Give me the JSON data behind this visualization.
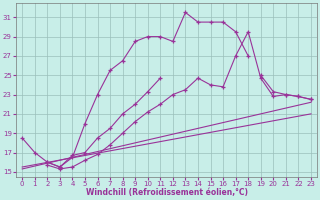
{
  "background_color": "#c8eee8",
  "grid_color": "#9bbfbb",
  "line_color": "#993399",
  "xlabel": "Windchill (Refroidissement éolien,°C)",
  "xlim": [
    -0.5,
    23.5
  ],
  "ylim": [
    14.5,
    32.5
  ],
  "yticks": [
    15,
    17,
    19,
    21,
    23,
    25,
    27,
    29,
    31
  ],
  "xticks": [
    0,
    1,
    2,
    3,
    4,
    5,
    6,
    7,
    8,
    9,
    10,
    11,
    12,
    13,
    14,
    15,
    16,
    17,
    18,
    19,
    20,
    21,
    22,
    23
  ],
  "curve1_x": [
    0,
    1,
    2,
    3,
    4,
    5,
    6,
    7,
    8,
    9,
    10,
    11,
    12,
    13,
    14,
    15,
    16,
    17,
    18
  ],
  "curve1_y": [
    18.5,
    17.0,
    16.0,
    15.5,
    16.5,
    20.0,
    23.0,
    25.5,
    26.5,
    28.5,
    29.0,
    29.0,
    28.5,
    31.5,
    30.5,
    30.5,
    30.5,
    29.5,
    27.0
  ],
  "curve2_x": [
    2,
    3,
    4,
    5,
    6,
    7,
    8,
    9,
    10,
    11,
    19,
    20,
    21,
    22,
    23
  ],
  "curve2_y": [
    16.0,
    15.5,
    16.7,
    17.0,
    18.5,
    19.5,
    21.0,
    22.0,
    23.3,
    24.7,
    25.0,
    23.3,
    23.0,
    22.8,
    22.5
  ],
  "curve3_x": [
    2,
    3,
    4,
    5,
    6,
    7,
    8,
    9,
    10,
    11,
    12,
    13,
    14,
    15,
    16,
    17,
    18,
    19,
    20,
    21,
    22,
    23
  ],
  "curve3_y": [
    15.7,
    15.3,
    15.5,
    16.2,
    16.8,
    17.8,
    19.0,
    20.2,
    21.2,
    22.0,
    23.0,
    23.5,
    24.7,
    24.0,
    23.8,
    27.0,
    29.5,
    24.7,
    22.8,
    23.0,
    22.8,
    22.5
  ],
  "line1_x": [
    0,
    23
  ],
  "line1_y": [
    15.3,
    22.2
  ],
  "line2_x": [
    0,
    23
  ],
  "line2_y": [
    15.5,
    21.0
  ]
}
